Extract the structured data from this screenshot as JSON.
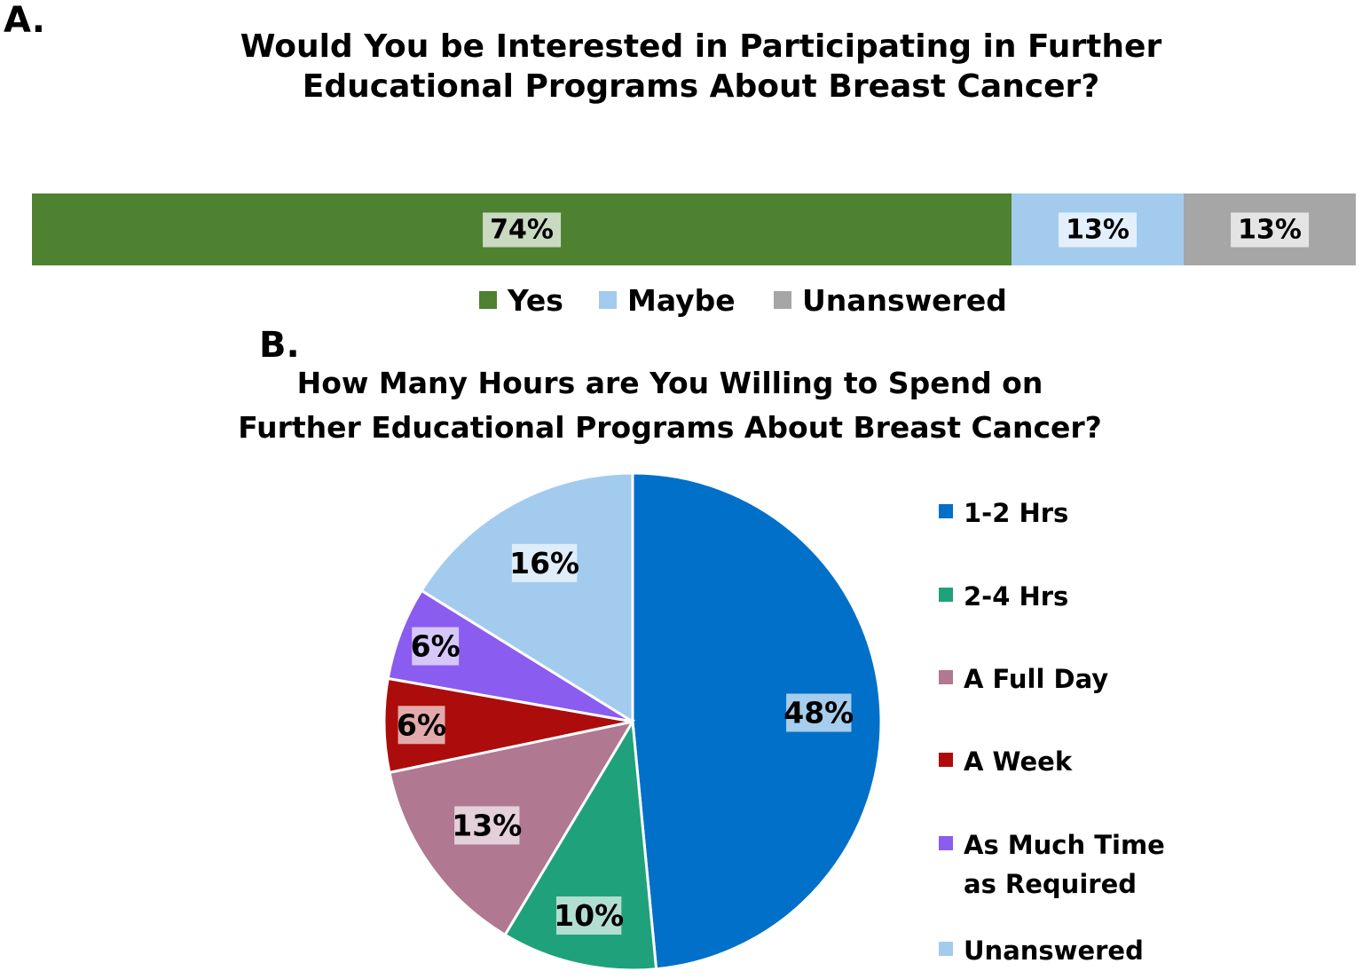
{
  "panel_a": {
    "letter": "A.",
    "title_line1": "Would You be Interested in Participating in Further",
    "title_line2": "Educational Programs About Breast Cancer?"
  },
  "panel_b": {
    "letter": "B.",
    "title_line1": "How Many Hours are You Willing to Spend on",
    "title_line2": "Further Educational Programs About Breast Cancer?"
  },
  "chart_data": [
    {
      "type": "bar",
      "orientation": "horizontal-stacked-100",
      "title": "Would You be Interested in Participating in Further Educational Programs About Breast Cancer?",
      "series": [
        {
          "name": "Yes",
          "value": 74,
          "label": "74%",
          "color": "#4e8130"
        },
        {
          "name": "Maybe",
          "value": 13,
          "label": "13%",
          "color": "#a3cbee"
        },
        {
          "name": "Unanswered",
          "value": 13,
          "label": "13%",
          "color": "#a6a6a6"
        }
      ],
      "legend_position": "bottom"
    },
    {
      "type": "pie",
      "title": "How Many Hours are You Willing to Spend on Further Educational Programs About Breast Cancer?",
      "slices": [
        {
          "name": "1-2 Hrs",
          "value": 48,
          "label": "48%",
          "color": "#0070c8"
        },
        {
          "name": "2-4 Hrs",
          "value": 10,
          "label": "10%",
          "color": "#1fa27b"
        },
        {
          "name": "A Full Day",
          "value": 13,
          "label": "13%",
          "color": "#b07891"
        },
        {
          "name": "A Week",
          "value": 6,
          "label": "6%",
          "color": "#ad0c0c"
        },
        {
          "name": "As Much Time as Required",
          "value": 6,
          "label": "6%",
          "color": "#8b5cf0"
        },
        {
          "name": "Unanswered",
          "value": 16,
          "label": "16%",
          "color": "#a3cbee"
        }
      ],
      "legend_position": "right"
    }
  ]
}
